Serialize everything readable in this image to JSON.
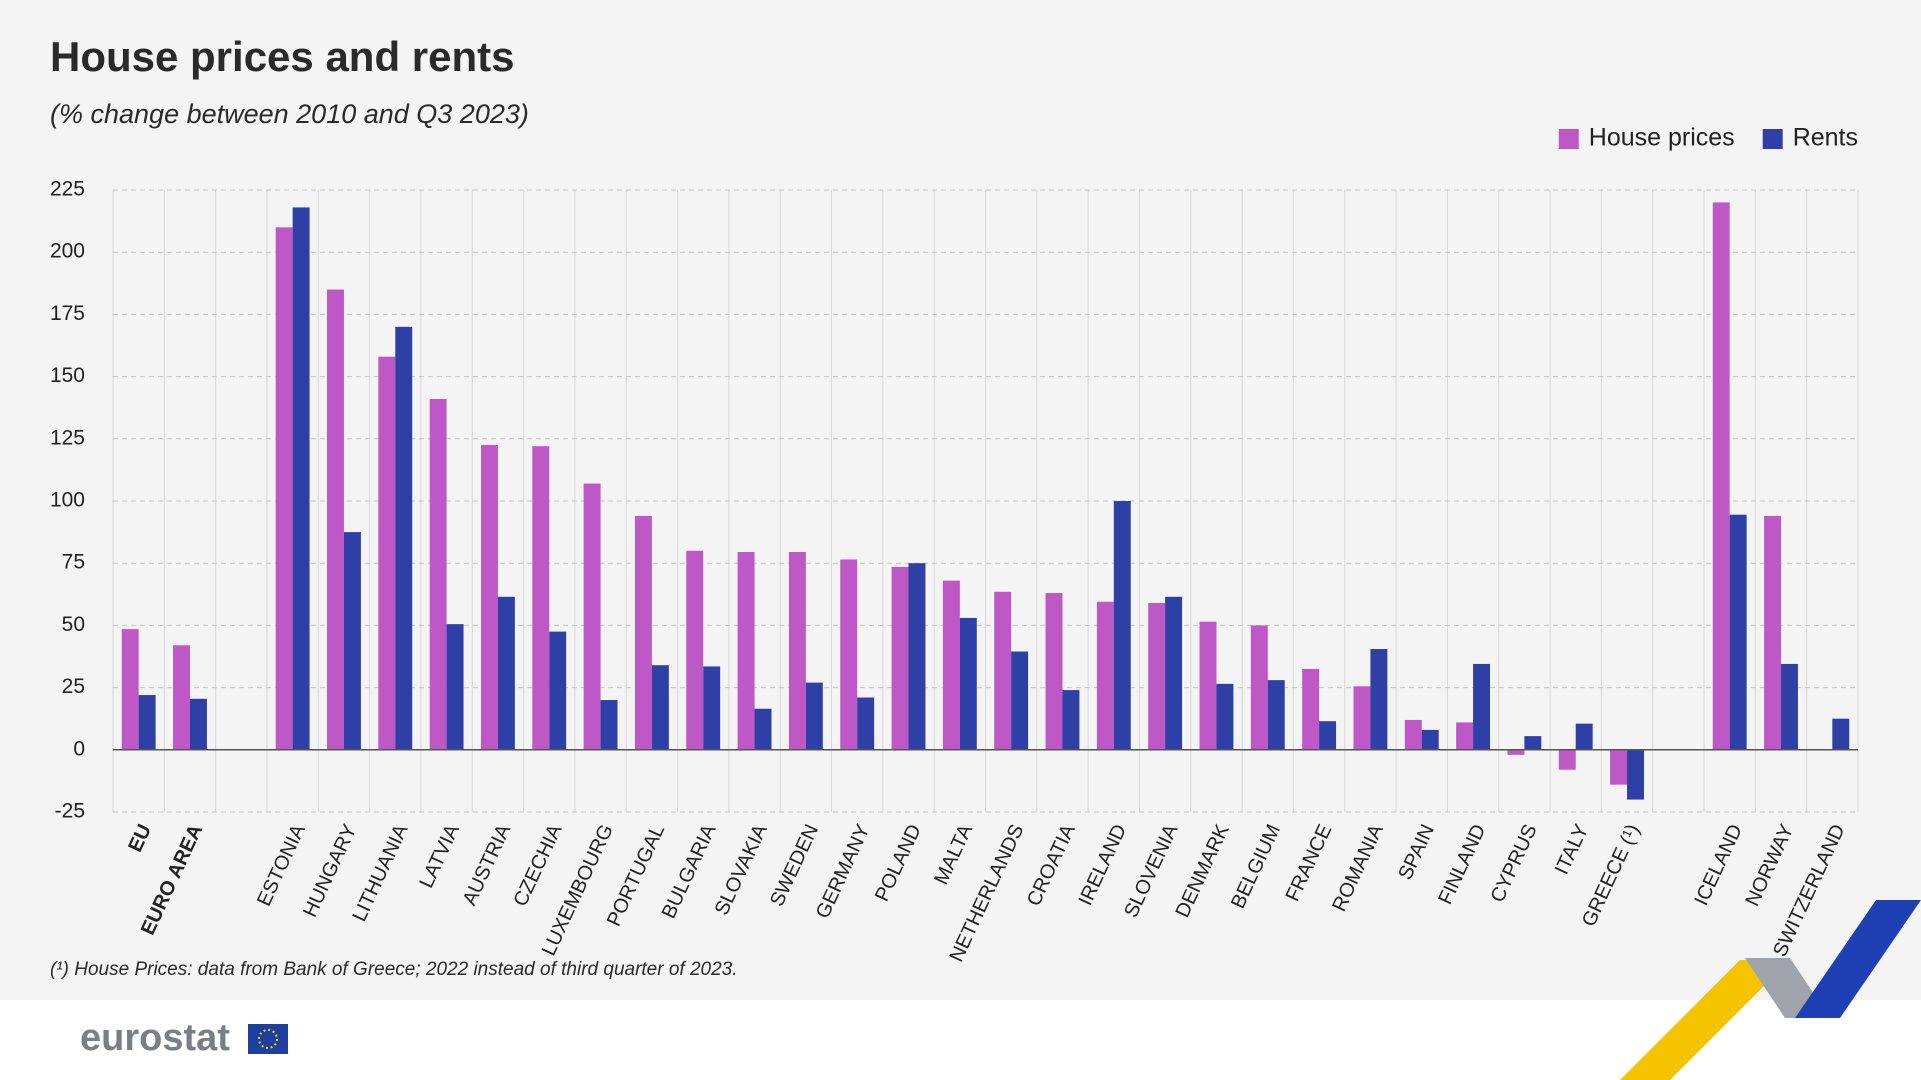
{
  "chart_data": {
    "type": "bar",
    "title": "House prices and rents",
    "subtitle": "(% change between 2010 and Q3 2023)",
    "note": "(¹) House Prices: data from Bank of Greece; 2022 instead of third quarter of 2023.",
    "categories": [
      "EU",
      "EURO AREA",
      null,
      "ESTONIA",
      "HUNGARY",
      "LITHUANIA",
      "LATVIA",
      "AUSTRIA",
      "CZECHIA",
      "LUXEMBOURG",
      "PORTUGAL",
      "BULGARIA",
      "SLOVAKIA",
      "SWEDEN",
      "GERMANY",
      "POLAND",
      "MALTA",
      "NETHERLANDS",
      "CROATIA",
      "IRELAND",
      "SLOVENIA",
      "DENMARK",
      "BELGIUM",
      "FRANCE",
      "ROMANIA",
      "SPAIN",
      "FINLAND",
      "CYPRUS",
      "ITALY",
      "GREECE (¹)",
      null,
      "ICELAND",
      "NORWAY",
      "SWITZERLAND"
    ],
    "bold_categories": [
      "EU",
      "EURO AREA"
    ],
    "series": [
      {
        "name": "House prices",
        "color": "#bd58c6",
        "values": [
          48.5,
          42,
          null,
          210,
          185,
          158,
          141,
          122.5,
          122,
          107,
          94,
          80,
          79.5,
          79.5,
          76.5,
          73.5,
          68,
          63.5,
          63,
          59.5,
          59,
          51.5,
          50,
          32.5,
          25.5,
          12,
          11,
          -2,
          -8,
          -14,
          null,
          220,
          94,
          null
        ]
      },
      {
        "name": "Rents",
        "color": "#2e3fa6",
        "values": [
          22,
          20.5,
          null,
          218,
          87.5,
          170,
          50.5,
          61.5,
          47.5,
          20,
          34,
          33.5,
          16.5,
          27,
          21,
          75,
          53,
          39.5,
          24,
          100,
          61.5,
          26.5,
          28,
          11.5,
          40.5,
          8,
          34.5,
          5.5,
          10.5,
          -20,
          null,
          94.5,
          34.5,
          12.5
        ]
      }
    ],
    "ylim": [
      -25,
      225
    ],
    "yticks": [
      -25,
      0,
      25,
      50,
      75,
      100,
      125,
      150,
      175,
      200,
      225
    ],
    "grid": true,
    "legend": "top-right"
  },
  "footer": {
    "logo": "eurostat"
  }
}
